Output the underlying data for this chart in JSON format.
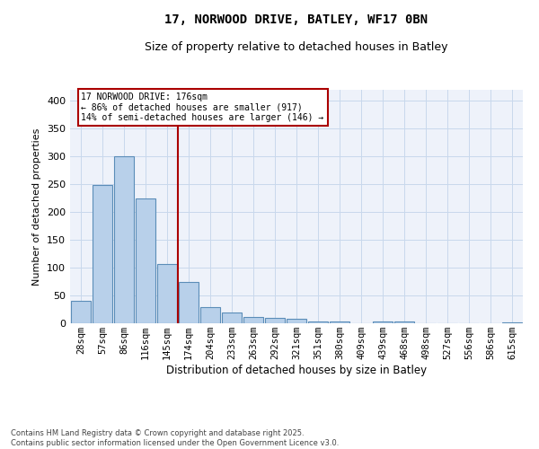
{
  "title1": "17, NORWOOD DRIVE, BATLEY, WF17 0BN",
  "title2": "Size of property relative to detached houses in Batley",
  "xlabel": "Distribution of detached houses by size in Batley",
  "ylabel": "Number of detached properties",
  "categories": [
    "28sqm",
    "57sqm",
    "86sqm",
    "116sqm",
    "145sqm",
    "174sqm",
    "204sqm",
    "233sqm",
    "263sqm",
    "292sqm",
    "321sqm",
    "351sqm",
    "380sqm",
    "409sqm",
    "439sqm",
    "468sqm",
    "498sqm",
    "527sqm",
    "556sqm",
    "586sqm",
    "615sqm"
  ],
  "values": [
    40,
    248,
    301,
    224,
    107,
    75,
    29,
    19,
    12,
    9,
    8,
    4,
    3,
    0,
    3,
    3,
    0,
    0,
    0,
    0,
    1
  ],
  "bar_color": "#b8d0ea",
  "bar_edge_color": "#5b8db8",
  "highlight_line_color": "#aa0000",
  "annotation_text": "17 NORWOOD DRIVE: 176sqm\n← 86% of detached houses are smaller (917)\n14% of semi-detached houses are larger (146) →",
  "annotation_box_edgecolor": "#aa0000",
  "ylim": [
    0,
    420
  ],
  "yticks": [
    0,
    50,
    100,
    150,
    200,
    250,
    300,
    350,
    400
  ],
  "grid_color": "#c8d8ec",
  "bg_color": "#eef2fa",
  "footer_text": "Contains HM Land Registry data © Crown copyright and database right 2025.\nContains public sector information licensed under the Open Government Licence v3.0.",
  "title1_fontsize": 10,
  "title2_fontsize": 9,
  "axis_label_fontsize": 8,
  "tick_fontsize": 7.5,
  "footer_fontsize": 6
}
